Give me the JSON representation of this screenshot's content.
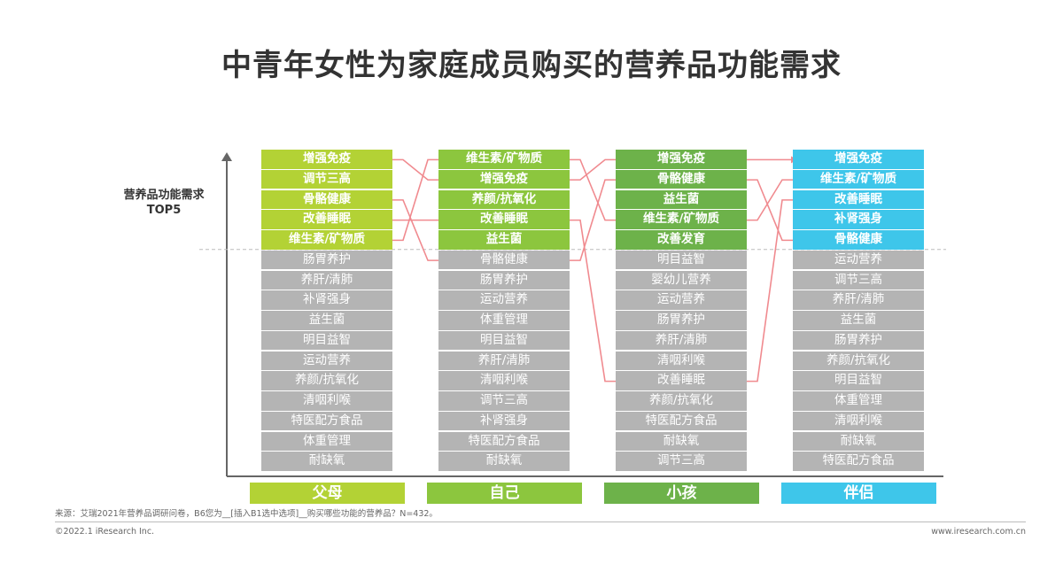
{
  "title": "中青年女性为家庭成员购买的营养品功能需求",
  "ylabel": [
    "营养品功能需求",
    "TOP5"
  ],
  "footer": {
    "source": "来源：艾瑞2021年营养品调研问卷，B6您为__[插入B1选中选项]__购买哪些功能的营养品？N=432。",
    "copyright": "©2022.1 iResearch Inc.",
    "website": "www.iresearch.com.cn"
  },
  "chart_data": {
    "type": "table",
    "title": "中青年女性为家庭成员购买的营养品功能需求",
    "top_n": 5,
    "colors": {
      "gray": "#b4b4b4",
      "line": "#f08a8f"
    },
    "columns": [
      {
        "name": "父母",
        "color": "#b3d235",
        "items": [
          "增强免疫",
          "调节三高",
          "骨骼健康",
          "改善睡眠",
          "维生素/矿物质",
          "肠胃养护",
          "养肝/清肺",
          "补肾强身",
          "益生菌",
          "明目益智",
          "运动营养",
          "养颜/抗氧化",
          "清咽利喉",
          "特医配方食品",
          "体重管理",
          "耐缺氧"
        ]
      },
      {
        "name": "自己",
        "color": "#8cc63e",
        "items": [
          "维生素/矿物质",
          "增强免疫",
          "养颜/抗氧化",
          "改善睡眠",
          "益生菌",
          "骨骼健康",
          "肠胃养护",
          "运动营养",
          "体重管理",
          "明目益智",
          "养肝/清肺",
          "清咽利喉",
          "调节三高",
          "补肾强身",
          "特医配方食品",
          "耐缺氧"
        ]
      },
      {
        "name": "小孩",
        "color": "#6db24a",
        "items": [
          "增强免疫",
          "骨骼健康",
          "益生菌",
          "维生素/矿物质",
          "改善发育",
          "明目益智",
          "婴幼儿营养",
          "运动营养",
          "肠胃养护",
          "养肝/清肺",
          "清咽利喉",
          "改善睡眠",
          "养颜/抗氧化",
          "特医配方食品",
          "耐缺氧",
          "调节三高"
        ]
      },
      {
        "name": "伴侣",
        "color": "#3ec6ea",
        "items": [
          "增强免疫",
          "维生素/矿物质",
          "改善睡眠",
          "补肾强身",
          "骨骼健康",
          "运动营养",
          "调节三高",
          "养肝/清肺",
          "益生菌",
          "肠胃养护",
          "养颜/抗氧化",
          "明目益智",
          "体重管理",
          "清咽利喉",
          "耐缺氧",
          "特医配方食品"
        ]
      }
    ],
    "links": [
      [
        0,
        0,
        1
      ],
      [
        0,
        2,
        5
      ],
      [
        0,
        3,
        3
      ],
      [
        0,
        4,
        0
      ],
      [
        1,
        0,
        3
      ],
      [
        1,
        1,
        0
      ],
      [
        1,
        3,
        11
      ],
      [
        1,
        5,
        1
      ],
      [
        2,
        0,
        0
      ],
      [
        2,
        1,
        4
      ],
      [
        2,
        3,
        1
      ],
      [
        2,
        11,
        2
      ]
    ]
  }
}
